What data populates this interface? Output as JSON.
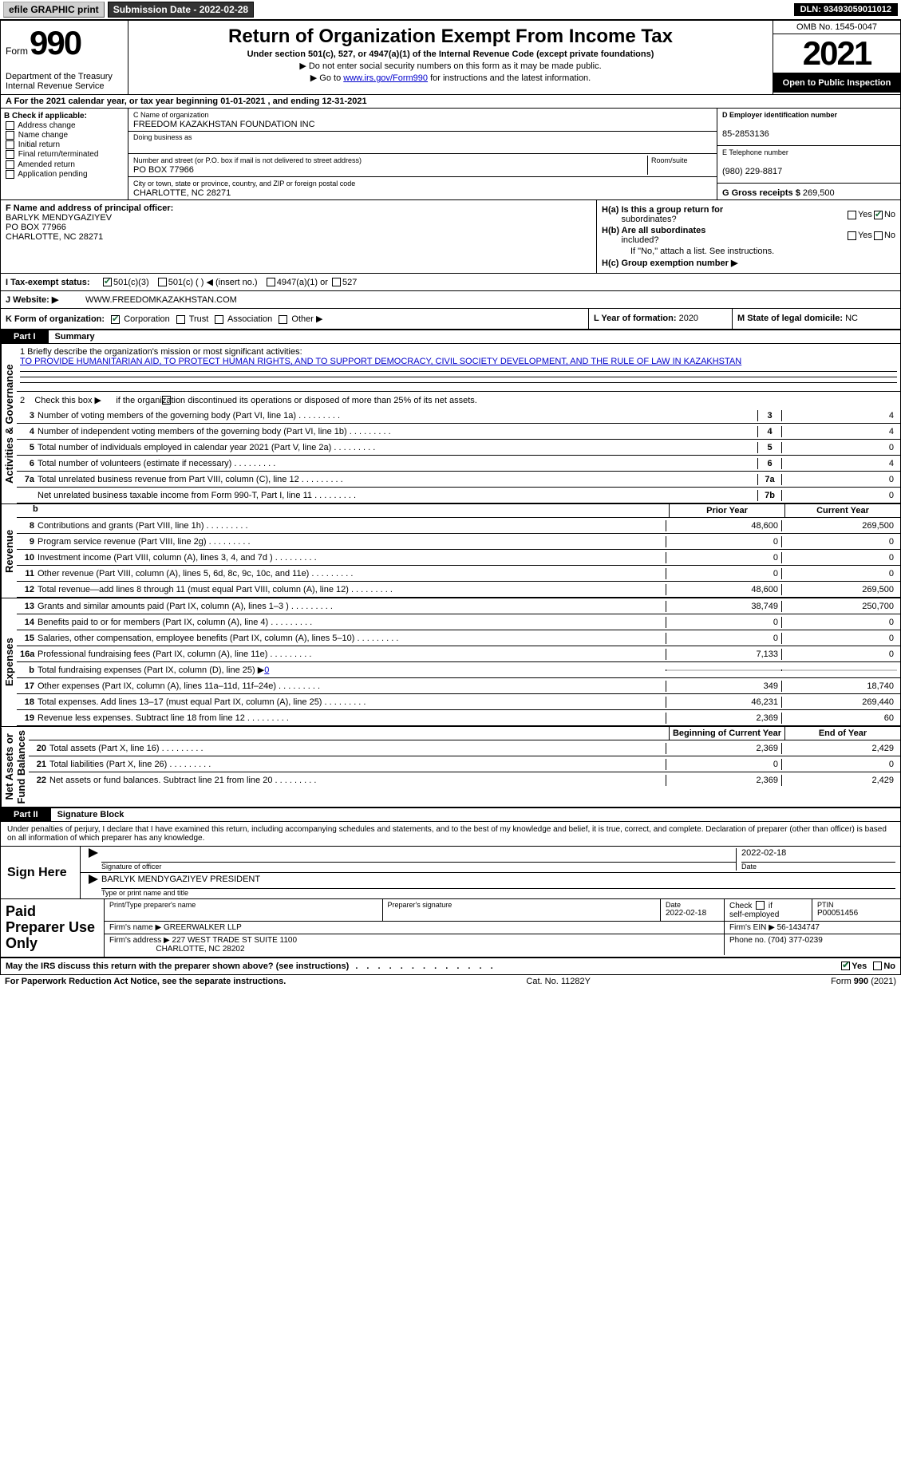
{
  "topbar": {
    "efile": "efile GRAPHIC print",
    "submission": "Submission Date - 2022-02-28",
    "dln": "DLN: 93493059011012"
  },
  "header": {
    "form_label": "Form",
    "form_number": "990",
    "dept": "Department of the Treasury\nInternal Revenue Service",
    "title": "Return of Organization Exempt From Income Tax",
    "sub1": "Under section 501(c), 527, or 4947(a)(1) of the Internal Revenue Code (except private foundations)",
    "sub2": "▶ Do not enter social security numbers on this form as it may be made public.",
    "sub3_pre": "▶ Go to ",
    "sub3_link": "www.irs.gov/Form990",
    "sub3_post": " for instructions and the latest information.",
    "omb": "OMB No. 1545-0047",
    "year": "2021",
    "otp": "Open to Public Inspection"
  },
  "sectionA": "A For the 2021 calendar year, or tax year beginning 01-01-2021    , and ending 12-31-2021",
  "colB": {
    "label": "B Check if applicable:",
    "items": [
      "Address change",
      "Name change",
      "Initial return",
      "Final return/terminated",
      "Amended return",
      "Application pending"
    ]
  },
  "colC": {
    "name_lab": "C Name of organization",
    "name": "FREEDOM KAZAKHSTAN FOUNDATION INC",
    "dba_lab": "Doing business as",
    "dba": "",
    "addr_lab": "Number and street (or P.O. box if mail is not delivered to street address)",
    "room_lab": "Room/suite",
    "addr": "PO BOX 77966",
    "city_lab": "City or town, state or province, country, and ZIP or foreign postal code",
    "city": "CHARLOTTE, NC  28271"
  },
  "colD": {
    "ein_lab": "D Employer identification number",
    "ein": "85-2853136",
    "phone_lab": "E Telephone number",
    "phone": "(980) 229-8817",
    "gross_lab": "G Gross receipts $",
    "gross": "269,500"
  },
  "rowF": {
    "lab": "F  Name and address of principal officer:",
    "name": "BARLYK MENDYGAZIYEV",
    "addr1": "PO BOX 77966",
    "addr2": "CHARLOTTE, NC  28271"
  },
  "rowH": {
    "ha_lab": "H(a)  Is this a group return for",
    "ha_sub": "subordinates?",
    "hb_lab": "H(b)  Are all subordinates",
    "hb_sub": "included?",
    "hb_note": "If \"No,\" attach a list. See instructions.",
    "hc_lab": "H(c)  Group exemption number  ▶"
  },
  "rowI": {
    "lab": "I     Tax-exempt status:",
    "opt1": "501(c)(3)",
    "opt2": "501(c) (  ) ◀ (insert no.)",
    "opt3": "4947(a)(1) or",
    "opt4": "527"
  },
  "rowJ": {
    "lab": "J    Website: ▶",
    "val": "WWW.FREEDOMKAZAKHSTAN.COM"
  },
  "rowK": {
    "lab": "K Form of organization:",
    "opts": [
      "Corporation",
      "Trust",
      "Association",
      "Other ▶"
    ],
    "l_lab": "L Year of formation:",
    "l_val": "2020",
    "m_lab": "M State of legal domicile:",
    "m_val": "NC"
  },
  "part1": {
    "tab": "Part I",
    "title": "Summary"
  },
  "mission": {
    "lab": "1    Briefly describe the organization's mission or most significant activities:",
    "text": "TO PROVIDE HUMANITARIAN AID, TO PROTECT HUMAN RIGHTS, AND TO SUPPORT DEMOCRACY, CIVIL SOCIETY DEVELOPMENT, AND THE RULE OF LAW IN KAZAKHSTAN"
  },
  "line2": "2    Check this box ▶      if the organization discontinued its operations or disposed of more than 25% of its net assets.",
  "gov_lines": [
    {
      "n": "3",
      "d": "Number of voting members of the governing body (Part VI, line 1a)",
      "box": "3",
      "v": "4"
    },
    {
      "n": "4",
      "d": "Number of independent voting members of the governing body (Part VI, line 1b)",
      "box": "4",
      "v": "4"
    },
    {
      "n": "5",
      "d": "Total number of individuals employed in calendar year 2021 (Part V, line 2a)",
      "box": "5",
      "v": "0"
    },
    {
      "n": "6",
      "d": "Total number of volunteers (estimate if necessary)",
      "box": "6",
      "v": "4"
    },
    {
      "n": "7a",
      "d": "Total unrelated business revenue from Part VIII, column (C), line 12",
      "box": "7a",
      "v": "0"
    },
    {
      "n": "",
      "d": "Net unrelated business taxable income from Form 990-T, Part I, line 11",
      "box": "7b",
      "v": "0"
    }
  ],
  "vert": {
    "gov": "Activities & Governance",
    "rev": "Revenue",
    "exp": "Expenses",
    "net": "Net Assets or\nFund Balances"
  },
  "col_headers": {
    "prior": "Prior Year",
    "current": "Current Year"
  },
  "rev_lines": [
    {
      "n": "8",
      "d": "Contributions and grants (Part VIII, line 1h)",
      "p": "48,600",
      "c": "269,500"
    },
    {
      "n": "9",
      "d": "Program service revenue (Part VIII, line 2g)",
      "p": "0",
      "c": "0"
    },
    {
      "n": "10",
      "d": "Investment income (Part VIII, column (A), lines 3, 4, and 7d )",
      "p": "0",
      "c": "0"
    },
    {
      "n": "11",
      "d": "Other revenue (Part VIII, column (A), lines 5, 6d, 8c, 9c, 10c, and 11e)",
      "p": "0",
      "c": "0"
    },
    {
      "n": "12",
      "d": "Total revenue—add lines 8 through 11 (must equal Part VIII, column (A), line 12)",
      "p": "48,600",
      "c": "269,500"
    }
  ],
  "exp_lines": [
    {
      "n": "13",
      "d": "Grants and similar amounts paid (Part IX, column (A), lines 1–3 )",
      "p": "38,749",
      "c": "250,700"
    },
    {
      "n": "14",
      "d": "Benefits paid to or for members (Part IX, column (A), line 4)",
      "p": "0",
      "c": "0"
    },
    {
      "n": "15",
      "d": "Salaries, other compensation, employee benefits (Part IX, column (A), lines 5–10)",
      "p": "0",
      "c": "0"
    },
    {
      "n": "16a",
      "d": "Professional fundraising fees (Part IX, column (A), line 11e)",
      "p": "7,133",
      "c": "0"
    },
    {
      "n": "b",
      "d": "Total fundraising expenses (Part IX, column (D), line 25) ▶",
      "sub": "0",
      "gray": true
    },
    {
      "n": "17",
      "d": "Other expenses (Part IX, column (A), lines 11a–11d, 11f–24e)",
      "p": "349",
      "c": "18,740"
    },
    {
      "n": "18",
      "d": "Total expenses. Add lines 13–17 (must equal Part IX, column (A), line 25)",
      "p": "46,231",
      "c": "269,440"
    },
    {
      "n": "19",
      "d": "Revenue less expenses. Subtract line 18 from line 12",
      "p": "2,369",
      "c": "60"
    }
  ],
  "net_headers": {
    "begin": "Beginning of Current Year",
    "end": "End of Year"
  },
  "net_lines": [
    {
      "n": "20",
      "d": "Total assets (Part X, line 16)",
      "p": "2,369",
      "c": "2,429"
    },
    {
      "n": "21",
      "d": "Total liabilities (Part X, line 26)",
      "p": "0",
      "c": "0"
    },
    {
      "n": "22",
      "d": "Net assets or fund balances. Subtract line 21 from line 20",
      "p": "2,369",
      "c": "2,429"
    }
  ],
  "part2": {
    "tab": "Part II",
    "title": "Signature Block"
  },
  "sig_declaration": "Under penalties of perjury, I declare that I have examined this return, including accompanying schedules and statements, and to the best of my knowledge and belief, it is true, correct, and complete. Declaration of preparer (other than officer) is based on all information of which preparer has any knowledge.",
  "sign_here": "Sign Here",
  "sig": {
    "officer_lab": "Signature of officer",
    "date": "2022-02-18",
    "date_lab": "Date",
    "typed": "BARLYK MENDYGAZIYEV  PRESIDENT",
    "typed_lab": "Type or print name and title"
  },
  "paid": {
    "label": "Paid Preparer Use Only",
    "name_lab": "Print/Type preparer's name",
    "name": "",
    "sig_lab": "Preparer's signature",
    "date_lab": "Date",
    "date": "2022-02-18",
    "check_lab": "Check       if self-employed",
    "ptin_lab": "PTIN",
    "ptin": "P00051456",
    "firm_lab": "Firm's name     ▶",
    "firm": "GREERWALKER LLP",
    "ein_lab": "Firm's EIN ▶",
    "ein": "56-1434747",
    "addr_lab": "Firm's address ▶",
    "addr1": "227 WEST TRADE ST SUITE 1100",
    "addr2": "CHARLOTTE, NC  28202",
    "phone_lab": "Phone no.",
    "phone": "(704) 377-0239"
  },
  "footer_q": "May the IRS discuss this return with the preparer shown above? (see instructions)",
  "footer2": {
    "left": "For Paperwork Reduction Act Notice, see the separate instructions.",
    "mid": "Cat. No. 11282Y",
    "right": "Form 990 (2021)"
  }
}
